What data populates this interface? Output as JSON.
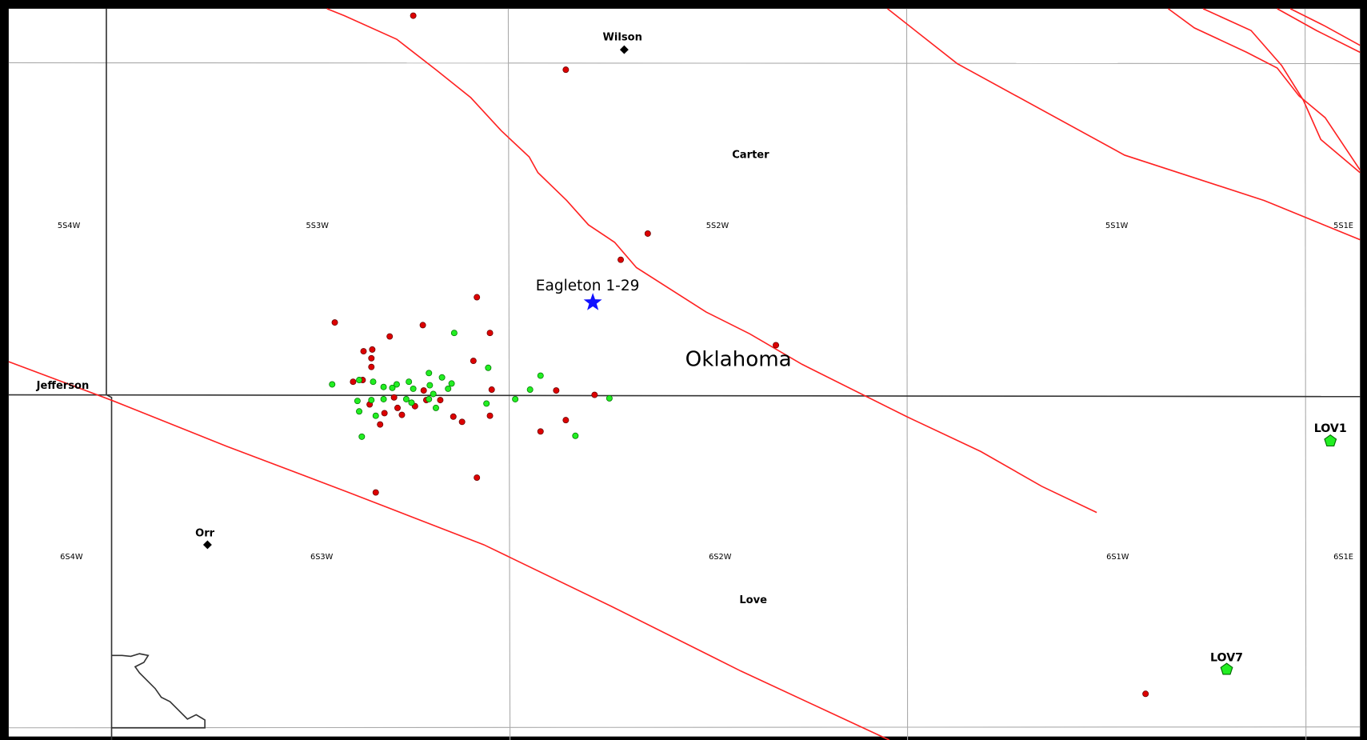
{
  "places": [
    "Wilson",
    "Carter",
    "Jefferson",
    "Orr",
    "Love"
  ],
  "townships": [
    "5S4W",
    "5S3W",
    "5S2W",
    "5S1W",
    "5S1E",
    "6S4W",
    "6S3W",
    "6S2W",
    "6S1W",
    "6S1E"
  ],
  "well": "Eagleton 1-29",
  "state": "Oklahoma",
  "stations": [
    "LOV1",
    "LOV7"
  ]
}
